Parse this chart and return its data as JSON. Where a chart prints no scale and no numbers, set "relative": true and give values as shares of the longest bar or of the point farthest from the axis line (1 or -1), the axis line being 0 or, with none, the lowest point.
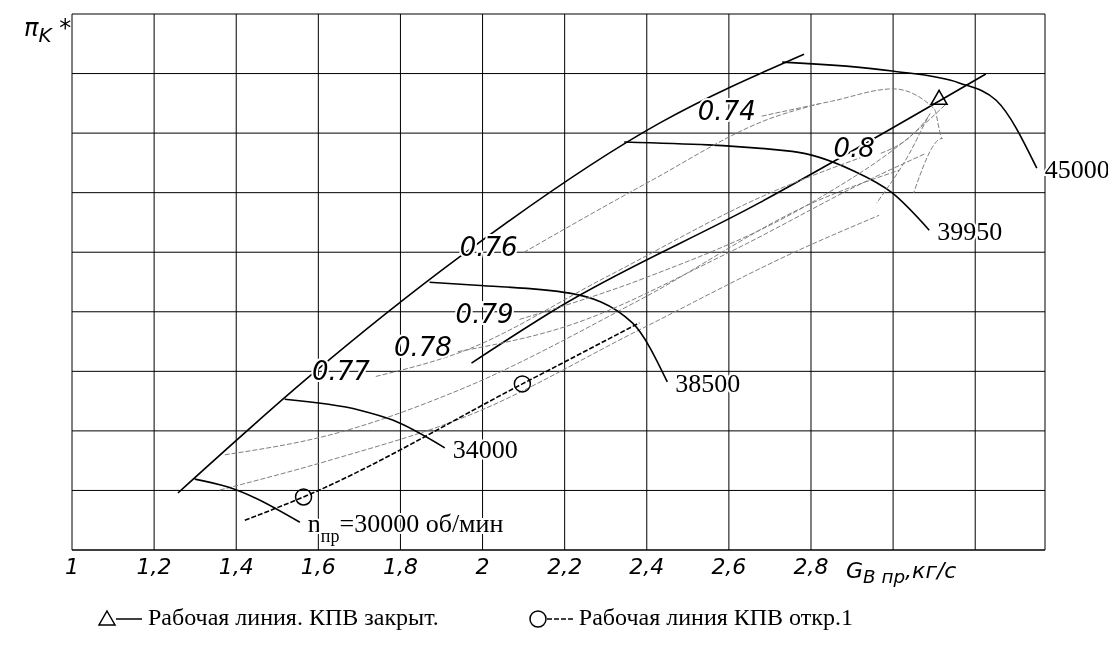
{
  "chart_data": {
    "type": "line",
    "relative": true,
    "xlabel": "G$_{B пр}$,кг/с",
    "ylabel": "π$_{K}$ *",
    "xlim": [
      1,
      3.37
    ],
    "xticks": [
      1,
      {
        "value": 1.2,
        "label": "1,2"
      },
      {
        "value": 1.4,
        "label": "1,4"
      },
      {
        "value": 1.6,
        "label": "1,6"
      },
      {
        "value": 1.8,
        "label": "1,8"
      },
      2,
      {
        "value": 2.2,
        "label": "2,2"
      },
      {
        "value": 2.4,
        "label": "2,4"
      },
      {
        "value": 2.6,
        "label": "2,6"
      },
      {
        "value": 2.8,
        "label": "2,8"
      },
      {
        "value": 3,
        "label": null
      },
      {
        "value": 3.2,
        "label": null
      }
    ],
    "grid": true,
    "legend": "bottom",
    "marker": "none",
    "series": [
      {
        "color": "#000000",
        "line_style": "solid",
        "x": [
          1.258,
          1.574,
          1.944,
          2.431,
          2.783
        ],
        "values": [
          0.115,
          0.347,
          0.591,
          0.861,
          1.0
        ]
      },
      {
        "name": "n$_{пр}$=30000 об/мин",
        "color": "#000000",
        "line_style": "solid",
        "x": [
          1.299,
          1.38,
          1.555
        ],
        "values": [
          0.143,
          0.127,
          0.056
        ]
      },
      {
        "name": "34000",
        "color": "#000000",
        "line_style": "solid",
        "x": [
          1.518,
          1.701,
          1.781,
          1.908
        ],
        "values": [
          0.304,
          0.282,
          0.262,
          0.206
        ]
      },
      {
        "name": "38500",
        "color": "#000000",
        "line_style": "solid",
        "x": [
          1.871,
          1.985,
          2.212,
          2.365,
          2.45
        ],
        "values": [
          0.54,
          0.534,
          0.518,
          0.458,
          0.339
        ]
      },
      {
        "name": "39950",
        "color": "#000000",
        "line_style": "solid",
        "x": [
          2.345,
          2.754,
          2.9,
          2.998,
          3.088
        ],
        "values": [
          0.823,
          0.804,
          0.766,
          0.72,
          0.645
        ]
      },
      {
        "name": "45000",
        "color": "#000000",
        "line_style": "solid",
        "x": [
          2.73,
          2.998,
          3.161,
          3.251,
          3.35
        ],
        "values": [
          0.984,
          0.966,
          0.942,
          0.907,
          0.77
        ]
      },
      {
        "color": "#808080",
        "line_style": "dashed",
        "x": [
          1.372,
          1.628,
          1.944,
          2.382,
          2.82,
          3.015
        ],
        "values": [
          0.192,
          0.232,
          0.323,
          0.504,
          0.706,
          0.766
        ]
      },
      {
        "color": "#808080",
        "line_style": "dashed",
        "x": [
          1.36,
          1.628,
          1.968,
          2.382,
          2.771,
          2.966
        ],
        "values": [
          0.121,
          0.181,
          0.272,
          0.444,
          0.605,
          0.675
        ]
      },
      {
        "name": "0.74",
        "color": "#808080",
        "line_style": "dashed",
        "x": [
          2.68,
          2.85,
          3.0,
          3.1,
          3.12,
          3.05
        ],
        "values": [
          0.875,
          0.905,
          0.93,
          0.89,
          0.83,
          0.72
        ]
      },
      {
        "name": "0.76",
        "color": "#808080",
        "line_style": "dashed",
        "x": [
          2.1,
          2.4,
          2.7,
          2.82
        ],
        "values": [
          0.6,
          0.74,
          0.87,
          0.9
        ]
      },
      {
        "name": "0.77",
        "color": "#808080",
        "line_style": "dashed",
        "x": [
          1.74,
          1.95,
          2.3,
          2.7,
          2.95
        ],
        "values": [
          0.35,
          0.4,
          0.55,
          0.72,
          0.8
        ]
      },
      {
        "name": "0.78",
        "color": "#808080",
        "line_style": "dashed",
        "x": [
          1.94,
          2.2,
          2.6,
          2.95,
          3.08
        ],
        "values": [
          0.4,
          0.45,
          0.6,
          0.75,
          0.8
        ]
      },
      {
        "name": "0.79",
        "color": "#808080",
        "line_style": "dashed",
        "x": [
          2.09,
          2.4,
          2.8,
          3.05,
          3.13
        ],
        "values": [
          0.465,
          0.55,
          0.7,
          0.84,
          0.9
        ]
      },
      {
        "name": "0.8",
        "color": "#808080",
        "line_style": "dashed",
        "x": [
          2.97,
          3.05,
          3.09,
          3.04,
          2.96
        ],
        "values": [
          0.8,
          0.84,
          0.88,
          0.8,
          0.7
        ]
      },
      {
        "color": "#000000",
        "line_style": "solid",
        "x": [
          1.973,
          2.187,
          2.674,
          3.226
        ],
        "values": [
          0.377,
          0.49,
          0.7,
          0.96
        ]
      },
      {
        "type": "scatter",
        "name": "Рабочая линия. КПВ закрыт.",
        "color": "#000000",
        "marker": "triangle",
        "x": [
          3.112
        ],
        "values": [
          0.911
        ]
      },
      {
        "color": "#000000",
        "line_style": "dashed",
        "x": [
          1.421,
          1.564,
          2.097,
          2.382
        ],
        "values": [
          0.06,
          0.107,
          0.335,
          0.458
        ]
      },
      {
        "type": "scatter",
        "name": "Рабочая линия КПВ откр.1",
        "color": "#000000",
        "marker": "circle",
        "x": [
          1.564,
          2.097
        ],
        "values": [
          0.107,
          0.335
        ]
      }
    ]
  }
}
